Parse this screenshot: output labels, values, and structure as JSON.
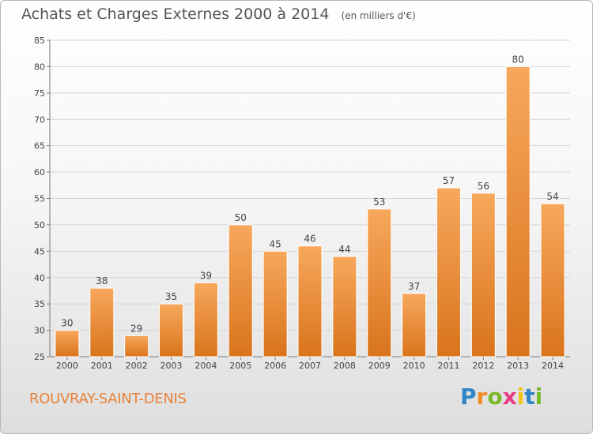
{
  "title": "Achats et Charges Externes 2000 à 2014",
  "unit": "(en milliers d'€)",
  "commune": "ROUVRAY-SAINT-DENIS",
  "logo": {
    "text": "Proxiti",
    "letters": [
      "P",
      "r",
      "o",
      "x",
      "i",
      "t",
      "i"
    ],
    "letter_colors": [
      "#2e86c8",
      "#f08a22",
      "#7ab929",
      "#e83d84",
      "#f0c419",
      "#2e86c8",
      "#7ab929"
    ]
  },
  "colors": {
    "bar_light": "#f7a85c",
    "bar_dark": "#d9741c",
    "grid": "#d4d4d4",
    "axis_text": "#444444",
    "commune": "#e8823a"
  },
  "chart_data": {
    "type": "bar",
    "categories": [
      "2000",
      "2001",
      "2002",
      "2003",
      "2004",
      "2005",
      "2006",
      "2007",
      "2008",
      "2009",
      "2010",
      "2011",
      "2012",
      "2013",
      "2014"
    ],
    "values": [
      30,
      38,
      29,
      35,
      39,
      50,
      45,
      46,
      44,
      53,
      37,
      57,
      56,
      80,
      54
    ],
    "ylim": [
      25,
      85
    ],
    "yticks": [
      25,
      30,
      35,
      40,
      45,
      50,
      55,
      60,
      65,
      70,
      75,
      80,
      85
    ],
    "grid": true,
    "data_labels": true
  }
}
